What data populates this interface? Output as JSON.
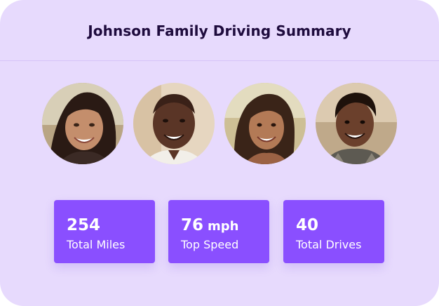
{
  "header": {
    "title": "Johnson Family Driving Summary"
  },
  "family_members": [
    {
      "icon": "woman-portrait"
    },
    {
      "icon": "man-portrait"
    },
    {
      "icon": "girl-portrait"
    },
    {
      "icon": "boy-portrait"
    }
  ],
  "stats": [
    {
      "value": "254",
      "unit": "",
      "label": "Total Miles"
    },
    {
      "value": "76",
      "unit": "mph",
      "label": "Top Speed"
    },
    {
      "value": "40",
      "unit": "",
      "label": "Total Drives"
    }
  ],
  "colors": {
    "card_background": "#e7dafd",
    "accent": "#8a4fff",
    "title_text": "#1e0b3d"
  }
}
